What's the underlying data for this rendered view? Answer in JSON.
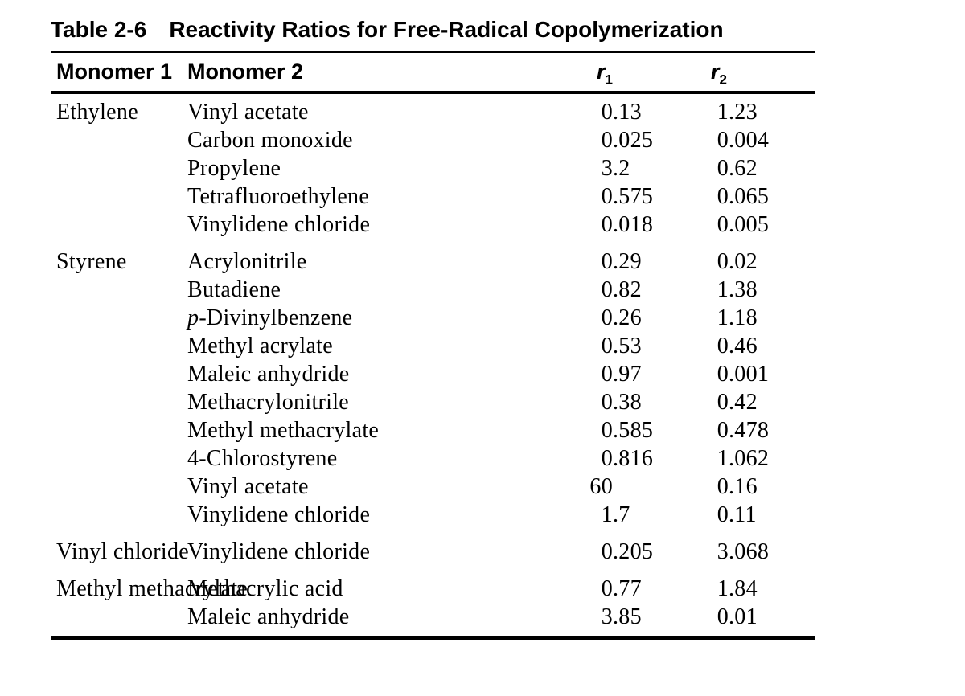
{
  "page": {
    "background": "#ffffff",
    "text_color": "#000000",
    "rule_color": "#000000"
  },
  "table": {
    "label": "Table 2-6",
    "title": "Reactivity Ratios for Free-Radical Copolymerization",
    "headers": {
      "monomer1": "Monomer 1",
      "monomer2": "Monomer 2",
      "r1": {
        "base": "r",
        "sub": "1"
      },
      "r2": {
        "base": "r",
        "sub": "2"
      }
    },
    "groups": [
      {
        "monomer1": "Ethylene",
        "rows": [
          {
            "monomer2": "Vinyl acetate",
            "r1": "0.13",
            "r2": "1.23"
          },
          {
            "monomer2": "Carbon monoxide",
            "r1": "0.025",
            "r2": "0.004"
          },
          {
            "monomer2": "Propylene",
            "r1": "3.2",
            "r2": "0.62"
          },
          {
            "monomer2": "Tetrafluoroethylene",
            "r1": "0.575",
            "r2": "0.065"
          },
          {
            "monomer2": "Vinylidene chloride",
            "r1": "0.018",
            "r2": "0.005"
          }
        ]
      },
      {
        "monomer1": "Styrene",
        "rows": [
          {
            "monomer2": "Acrylonitrile",
            "r1": "0.29",
            "r2": "0.02"
          },
          {
            "monomer2": "Butadiene",
            "r1": "0.82",
            "r2": "1.38"
          },
          {
            "monomer2": "p-Divinylbenzene",
            "italic_prefix_len": 1,
            "r1": "0.26",
            "r2": "1.18"
          },
          {
            "monomer2": "Methyl acrylate",
            "r1": "0.53",
            "r2": "0.46"
          },
          {
            "monomer2": "Maleic anhydride",
            "r1": "0.97",
            "r2": "0.001"
          },
          {
            "monomer2": "Methacrylonitrile",
            "r1": "0.38",
            "r2": "0.42"
          },
          {
            "monomer2": "Methyl methacrylate",
            "r1": "0.585",
            "r2": "0.478"
          },
          {
            "monomer2": "4-Chlorostyrene",
            "r1": "0.816",
            "r2": "1.062"
          },
          {
            "monomer2": "Vinyl acetate",
            "r1": "60",
            "r2": "0.16"
          },
          {
            "monomer2": "Vinylidene chloride",
            "r1": "1.7",
            "r2": "0.11"
          }
        ]
      },
      {
        "monomer1": "Vinyl chloride",
        "rows": [
          {
            "monomer2": "Vinylidene chloride",
            "r1": "0.205",
            "r2": "3.068"
          }
        ]
      },
      {
        "monomer1": "Methyl methacrylate",
        "rows": [
          {
            "monomer2": "Methacrylic acid",
            "r1": "0.77",
            "r2": "1.84"
          },
          {
            "monomer2": "Maleic anhydride",
            "r1": "3.85",
            "r2": "0.01"
          }
        ]
      }
    ]
  }
}
